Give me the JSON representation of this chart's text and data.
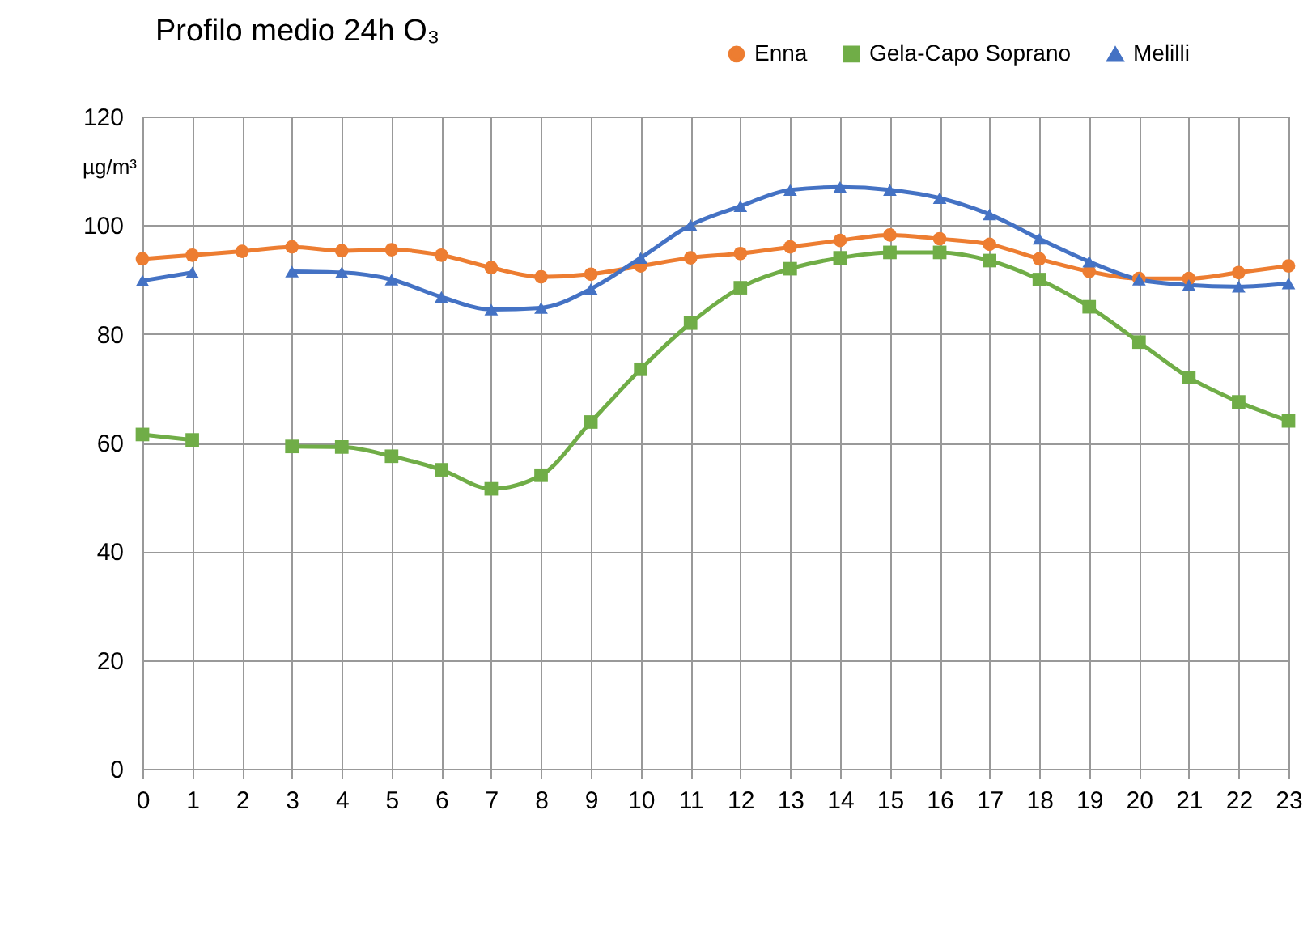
{
  "chart_data": {
    "type": "line",
    "title": "Profilo medio 24h O₃",
    "ylabel": "µg/m³",
    "x": [
      0,
      1,
      2,
      3,
      4,
      5,
      6,
      7,
      8,
      9,
      10,
      11,
      12,
      13,
      14,
      15,
      16,
      17,
      18,
      19,
      20,
      21,
      22,
      23
    ],
    "series": [
      {
        "name": "Enna",
        "color": "#ed7d31",
        "marker": "circle",
        "values": [
          93.8,
          94.5,
          95.2,
          96,
          95.3,
          95.5,
          94.5,
          92.2,
          90.5,
          91,
          92.5,
          94,
          94.8,
          96,
          97.2,
          98.2,
          97.5,
          96.5,
          93.8,
          91.5,
          90.2,
          90.2,
          91.3,
          92.5
        ]
      },
      {
        "name": "Gela-Capo Soprano",
        "color": "#70ad47",
        "marker": "square",
        "values": [
          61.5,
          60.5,
          null,
          59.3,
          59.2,
          57.5,
          55,
          51.5,
          54,
          63.8,
          73.5,
          82,
          88.5,
          92,
          94,
          95,
          95,
          93.5,
          90,
          85,
          78.5,
          72,
          67.5,
          64
        ]
      },
      {
        "name": "Melilli",
        "color": "#4472c4",
        "marker": "triangle",
        "values": [
          89.8,
          91.3,
          null,
          91.5,
          91.3,
          90,
          86.8,
          84.5,
          84.8,
          88.3,
          94,
          100,
          103.5,
          106.5,
          107,
          106.5,
          105,
          102,
          97.5,
          93.3,
          90,
          89,
          88.7,
          89.3
        ]
      }
    ],
    "xlim": [
      0,
      23
    ],
    "xticks": [
      0,
      1,
      2,
      3,
      4,
      5,
      6,
      7,
      8,
      9,
      10,
      11,
      12,
      13,
      14,
      15,
      16,
      17,
      18,
      19,
      20,
      21,
      22,
      23
    ],
    "ylim": [
      0,
      120
    ],
    "yticks": [
      0,
      20,
      40,
      60,
      80,
      100,
      120
    ],
    "grid": true,
    "legend": "top right",
    "line_style": "solid"
  }
}
